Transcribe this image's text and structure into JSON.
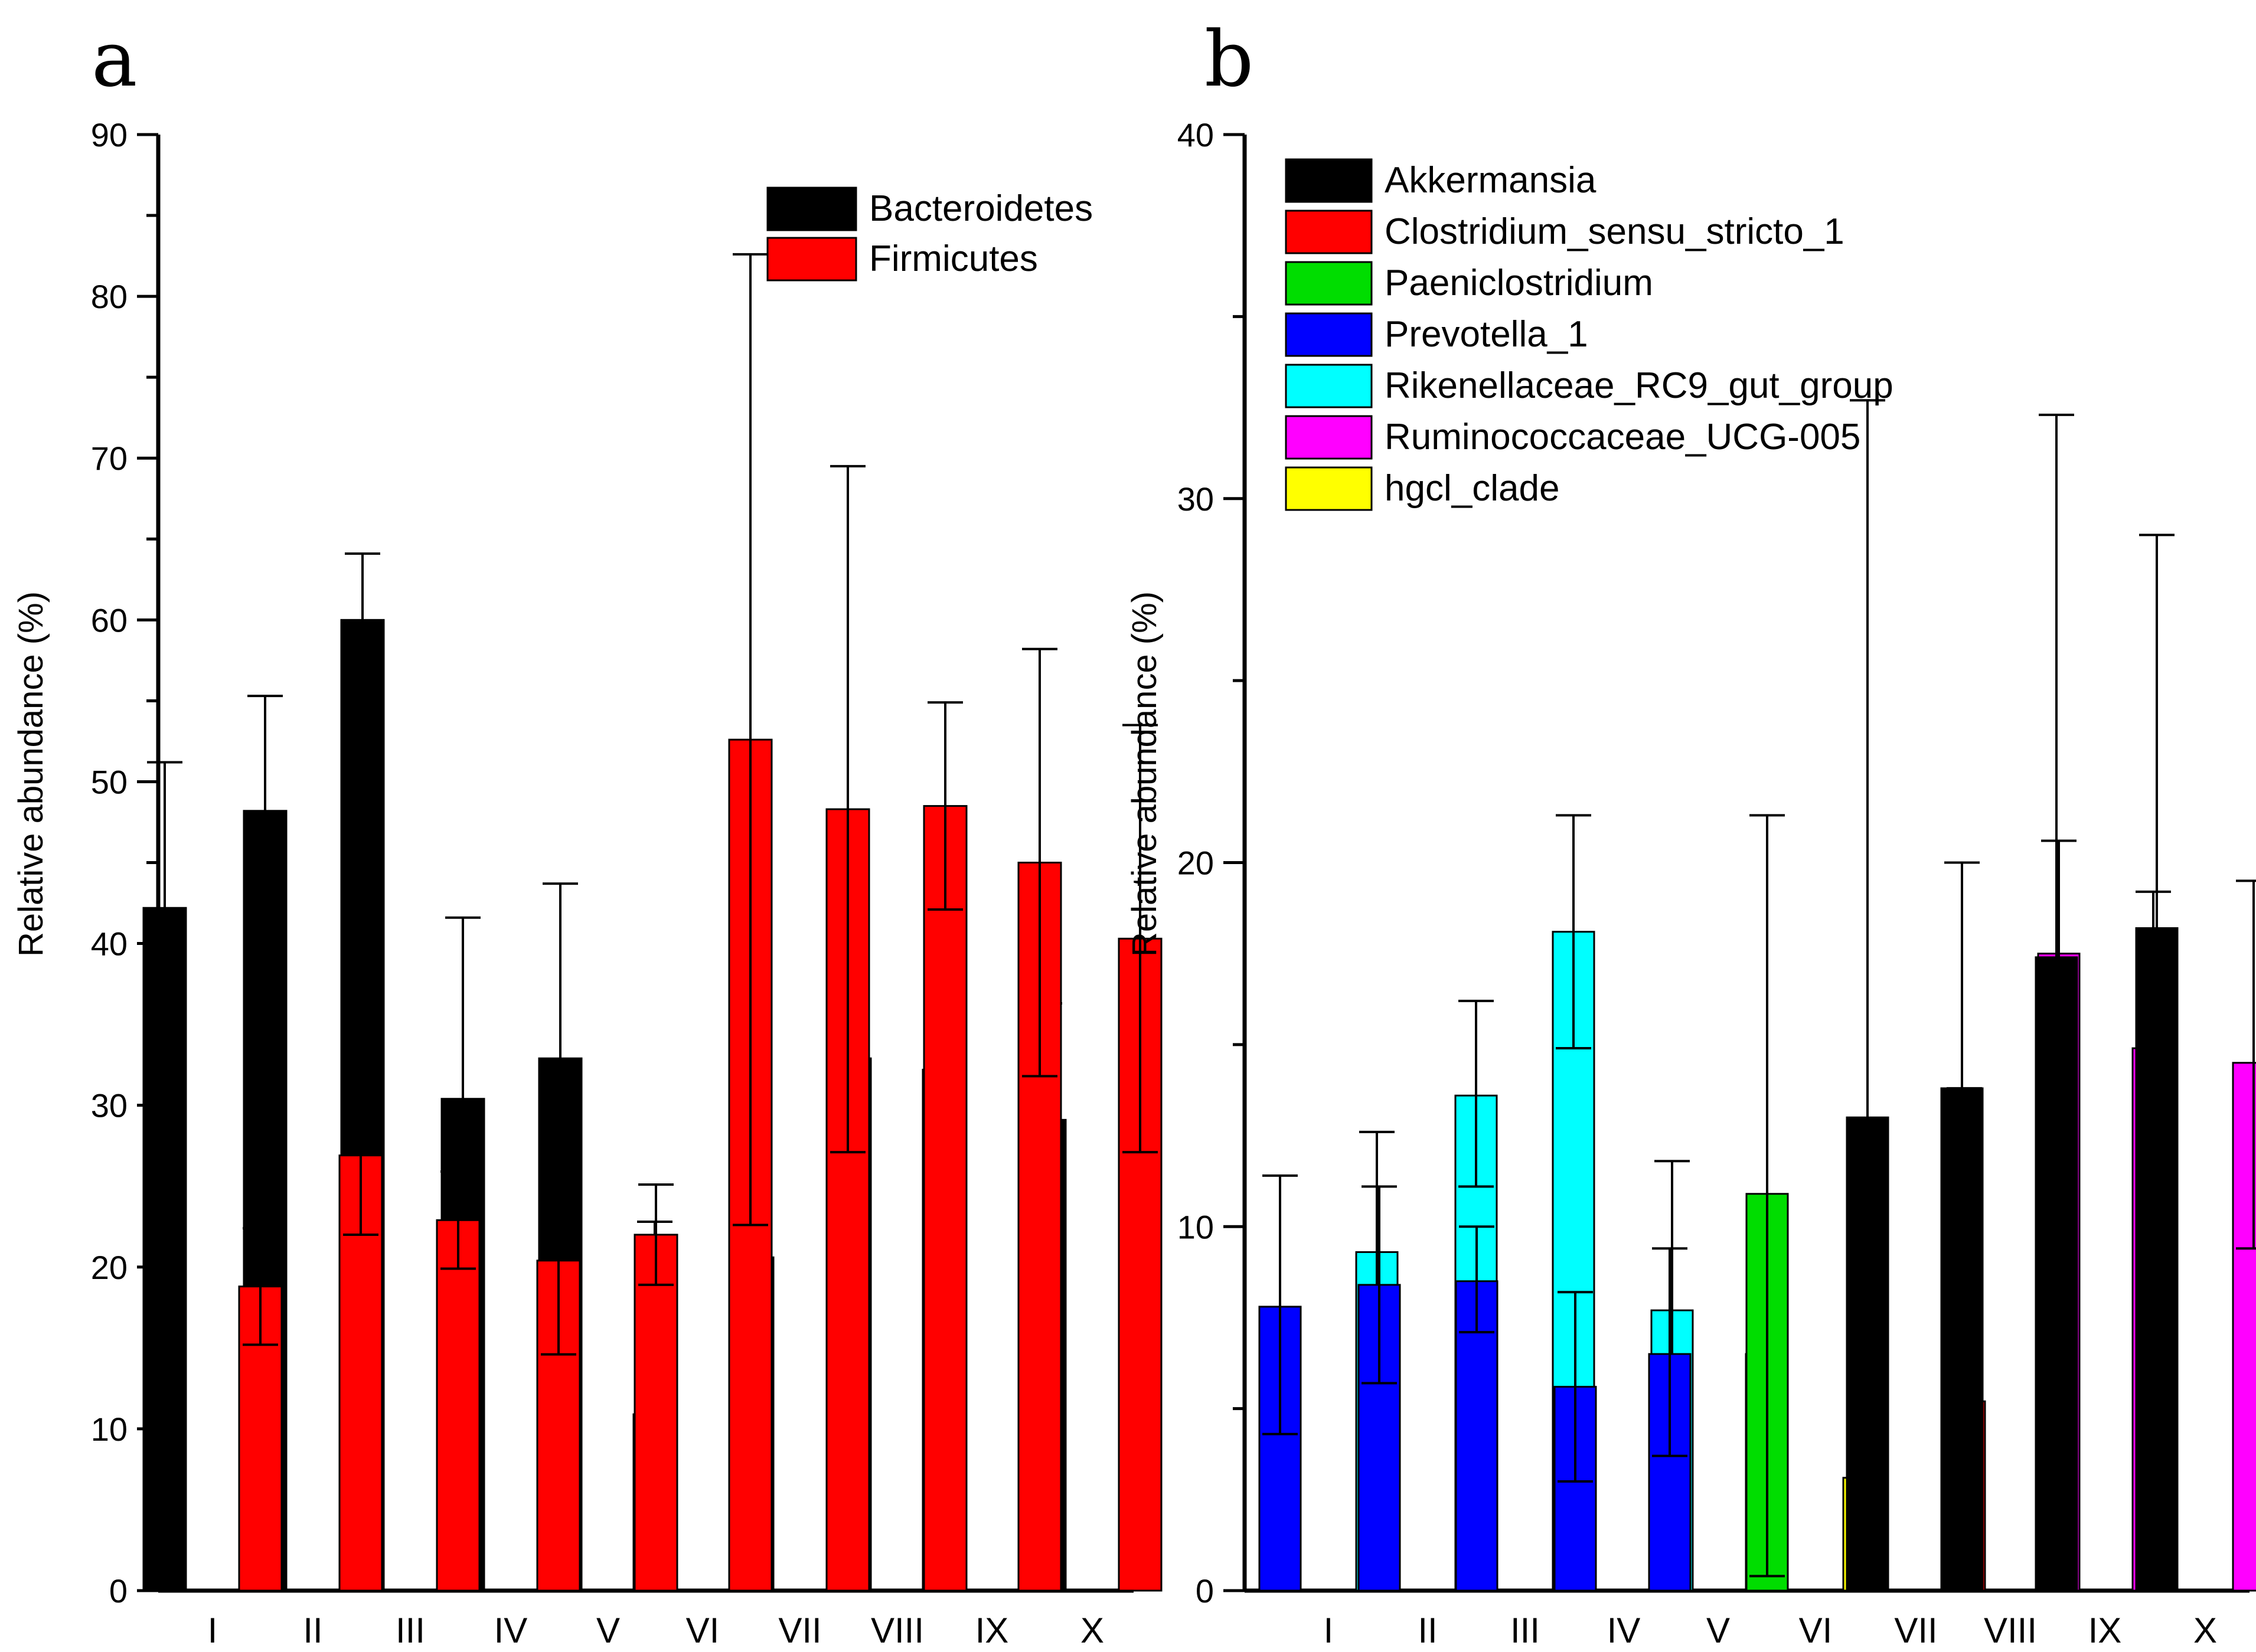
{
  "chart_data": [
    {
      "type": "bar",
      "panel_label": "a",
      "ylabel": "Relative abundance (%)",
      "ylim": [
        0,
        90
      ],
      "yticks": [
        0,
        10,
        20,
        30,
        40,
        50,
        60,
        70,
        80,
        90
      ],
      "categories": [
        "I",
        "II",
        "III",
        "IV",
        "V",
        "VI",
        "VII",
        "VIII",
        "IX",
        "X"
      ],
      "legend_position": "top-right",
      "series": [
        {
          "name": "Bacteroidetes",
          "color": "#000000",
          "values": [
            42.2,
            48.2,
            60.0,
            30.4,
            32.9,
            10.9,
            20.6,
            32.9,
            32.2,
            29.1
          ],
          "error": [
            9.0,
            7.1,
            4.1,
            11.2,
            10.8,
            11.9,
            14.2,
            4.3,
            4.7,
            7.2
          ]
        },
        {
          "name": "Firmicutes",
          "color": "#ff0000",
          "values": [
            18.8,
            26.9,
            22.9,
            20.4,
            22.0,
            52.6,
            48.3,
            48.5,
            45.0,
            40.3
          ],
          "error": [
            3.6,
            4.9,
            3.0,
            5.8,
            3.1,
            30.0,
            21.2,
            6.4,
            13.2,
            13.2
          ]
        }
      ]
    },
    {
      "type": "bar",
      "panel_label": "b",
      "ylabel": "Relative abundance (%)",
      "ylim": [
        0,
        40
      ],
      "yticks": [
        0,
        10,
        20,
        30,
        40
      ],
      "categories": [
        "I",
        "II",
        "III",
        "IV",
        "V",
        "VI",
        "VII",
        "VIII",
        "IX",
        "X"
      ],
      "legend_position": "top-left",
      "legend": [
        {
          "name": "Akkermansia",
          "color": "#000000"
        },
        {
          "name": "Clostridium_sensu_stricto_1",
          "color": "#ff0000"
        },
        {
          "name": "Paeniclostridium",
          "color": "#00dd00"
        },
        {
          "name": "Prevotella_1",
          "color": "#0000ff"
        },
        {
          "name": "Rikenellaceae_RC9_gut_group",
          "color": "#00ffff"
        },
        {
          "name": "Ruminococcaceae_UCG-005",
          "color": "#ff00ff"
        },
        {
          "name": "hgcl_clade",
          "color": "#ffff00"
        }
      ],
      "groups": [
        {
          "category": "I",
          "bars": [
            {
              "genus": "Prevotella_1",
              "value": 7.8,
              "lower": 4.3,
              "upper": 11.4
            },
            {
              "genus": "Rikenellaceae_RC9_gut_group",
              "value": 9.3,
              "lower": 6.1,
              "upper": 12.6
            }
          ]
        },
        {
          "category": "II",
          "bars": [
            {
              "genus": "Prevotella_1",
              "value": 8.4,
              "lower": 5.7,
              "upper": 11.1
            },
            {
              "genus": "Rikenellaceae_RC9_gut_group",
              "value": 13.6,
              "lower": 11.1,
              "upper": 16.2
            }
          ]
        },
        {
          "category": "III",
          "bars": [
            {
              "genus": "Prevotella_1",
              "value": 8.5,
              "lower": 7.1,
              "upper": 10.0
            },
            {
              "genus": "Rikenellaceae_RC9_gut_group",
              "value": 18.1,
              "lower": 14.9,
              "upper": 21.3
            }
          ]
        },
        {
          "category": "IV",
          "bars": [
            {
              "genus": "Prevotella_1",
              "value": 5.6,
              "lower": 3.0,
              "upper": 8.2
            },
            {
              "genus": "Rikenellaceae_RC9_gut_group",
              "value": 7.7,
              "lower": 3.5,
              "upper": 11.8
            }
          ]
        },
        {
          "category": "V",
          "bars": [
            {
              "genus": "Prevotella_1",
              "value": 6.5,
              "lower": 3.7,
              "upper": 9.4
            },
            {
              "genus": "Rikenellaceae_RC9_gut_group",
              "value": 6.5,
              "lower": 3.3,
              "upper": 9.6
            }
          ]
        },
        {
          "category": "VI",
          "bars": [
            {
              "genus": "Paeniclostridium",
              "value": 10.9,
              "lower": 0.4,
              "upper": 21.3
            },
            {
              "genus": "hgcl_clade",
              "value": 3.1,
              "lower": null,
              "upper": 6.5
            }
          ]
        },
        {
          "category": "VII",
          "bars": [
            {
              "genus": "Akkermansia",
              "value": 13.0,
              "lower": null,
              "upper": 32.7
            },
            {
              "genus": "Clostridium_sensu_stricto_1",
              "value": 5.2,
              "lower": null,
              "upper": 13.8
            }
          ]
        },
        {
          "category": "VIII",
          "bars": [
            {
              "genus": "Akkermansia",
              "value": 13.8,
              "lower": null,
              "upper": 20.0
            },
            {
              "genus": "Ruminococcaceae_UCG-005",
              "value": 17.5,
              "lower": 14.4,
              "upper": 20.6
            }
          ]
        },
        {
          "category": "IX",
          "bars": [
            {
              "genus": "Akkermansia",
              "value": 17.4,
              "lower": null,
              "upper": 32.3
            },
            {
              "genus": "Ruminococcaceae_UCG-005",
              "value": 14.9,
              "lower": 10.6,
              "upper": 19.2
            }
          ]
        },
        {
          "category": "X",
          "bars": [
            {
              "genus": "Akkermansia",
              "value": 18.2,
              "lower": null,
              "upper": 29.0
            },
            {
              "genus": "Ruminococcaceae_UCG-005",
              "value": 14.5,
              "lower": 9.4,
              "upper": 19.5
            }
          ]
        }
      ]
    }
  ]
}
